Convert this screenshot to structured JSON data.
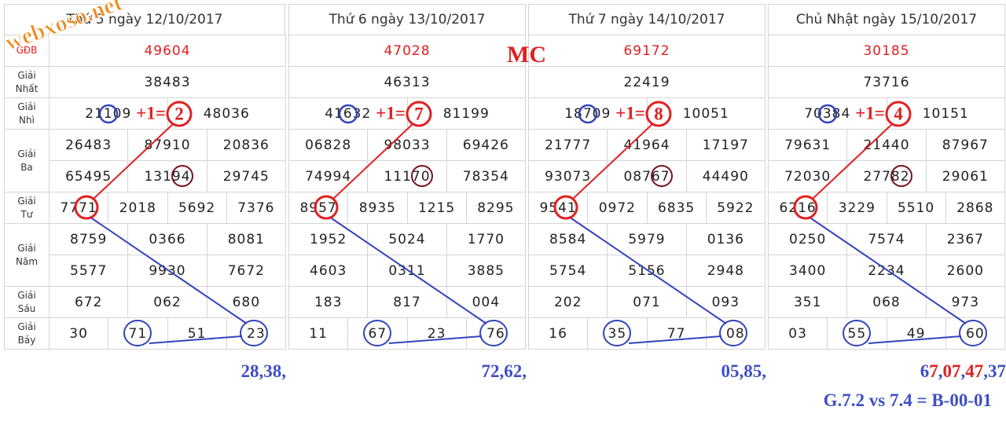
{
  "watermark": "webxoso.net",
  "mark": "MC",
  "labels": [
    "GĐB",
    "Giải Nhất",
    "Giải Nhì",
    "Giải Ba",
    "Giải Tư",
    "Giải Năm",
    "Giải Sáu",
    "Giải Bảy"
  ],
  "panels": [
    {
      "date": "Thứ 5 ngày 12/10/2017",
      "gdb": [
        "49604"
      ],
      "nhat": [
        "38483"
      ],
      "nhi": [
        "21109",
        "48036"
      ],
      "ba": [
        "26483",
        "87910",
        "20836",
        "65495",
        "13194",
        "29745"
      ],
      "tu": [
        "7771",
        "2018",
        "5692",
        "7376"
      ],
      "nam": [
        "8759",
        "0366",
        "8081",
        "5577",
        "9930",
        "7672"
      ],
      "sau": [
        "672",
        "062",
        "680"
      ],
      "bay": [
        "30",
        "71",
        "51",
        "23"
      ],
      "calc": "+1=",
      "result": "2",
      "tally": [
        {
          "text": "28,38,",
          "color": "#3f4fc4"
        }
      ]
    },
    {
      "date": "Thứ 6 ngày 13/10/2017",
      "gdb": [
        "47028"
      ],
      "nhat": [
        "46313"
      ],
      "nhi": [
        "41632",
        "81199"
      ],
      "ba": [
        "06828",
        "98033",
        "69426",
        "74994",
        "11170",
        "78354"
      ],
      "tu": [
        "8957",
        "8935",
        "1215",
        "8295"
      ],
      "nam": [
        "1952",
        "5024",
        "1770",
        "4603",
        "0311",
        "3885"
      ],
      "sau": [
        "183",
        "817",
        "004"
      ],
      "bay": [
        "11",
        "67",
        "23",
        "76"
      ],
      "calc": "+1=",
      "result": "7",
      "tally": [
        {
          "text": "72,62,",
          "color": "#3f4fc4"
        }
      ]
    },
    {
      "date": "Thứ 7 ngày 14/10/2017",
      "gdb": [
        "69172"
      ],
      "nhat": [
        "22419"
      ],
      "nhi": [
        "18709",
        "10051"
      ],
      "ba": [
        "21777",
        "41964",
        "17197",
        "93073",
        "08767",
        "44490"
      ],
      "tu": [
        "9541",
        "0972",
        "6835",
        "5922"
      ],
      "nam": [
        "8584",
        "5979",
        "0136",
        "5754",
        "5156",
        "2948"
      ],
      "sau": [
        "202",
        "071",
        "093"
      ],
      "bay": [
        "16",
        "35",
        "77",
        "08"
      ],
      "calc": "+1=",
      "result": "8",
      "tally": [
        {
          "text": "05,85,",
          "color": "#3f4fc4"
        }
      ]
    },
    {
      "date": "Chủ Nhật ngày 15/10/2017",
      "gdb": [
        "30185"
      ],
      "nhat": [
        "73716"
      ],
      "nhi": [
        "70384",
        "10151"
      ],
      "ba": [
        "79631",
        "21440",
        "87967",
        "72030",
        "27782",
        "29061"
      ],
      "tu": [
        "6216",
        "3229",
        "5510",
        "2868"
      ],
      "nam": [
        "0250",
        "7574",
        "2367",
        "3400",
        "2234",
        "2600"
      ],
      "sau": [
        "351",
        "068",
        "973"
      ],
      "bay": [
        "03",
        "55",
        "49",
        "60"
      ],
      "calc": "+1=",
      "result": "4",
      "tally": [
        {
          "text": "6",
          "color": "#3f4fc4"
        },
        {
          "text": "7",
          "color": "#e02020"
        },
        {
          "text": ",",
          "color": "#3f4fc4"
        },
        {
          "text": "07",
          "color": "#e02020"
        },
        {
          "text": ",",
          "color": "#3f4fc4"
        },
        {
          "text": "47",
          "color": "#e02020"
        },
        {
          "text": ",37",
          "color": "#3f4fc4"
        }
      ]
    }
  ],
  "footnote": "G.7.2 vs 7.4 = B-00-01"
}
